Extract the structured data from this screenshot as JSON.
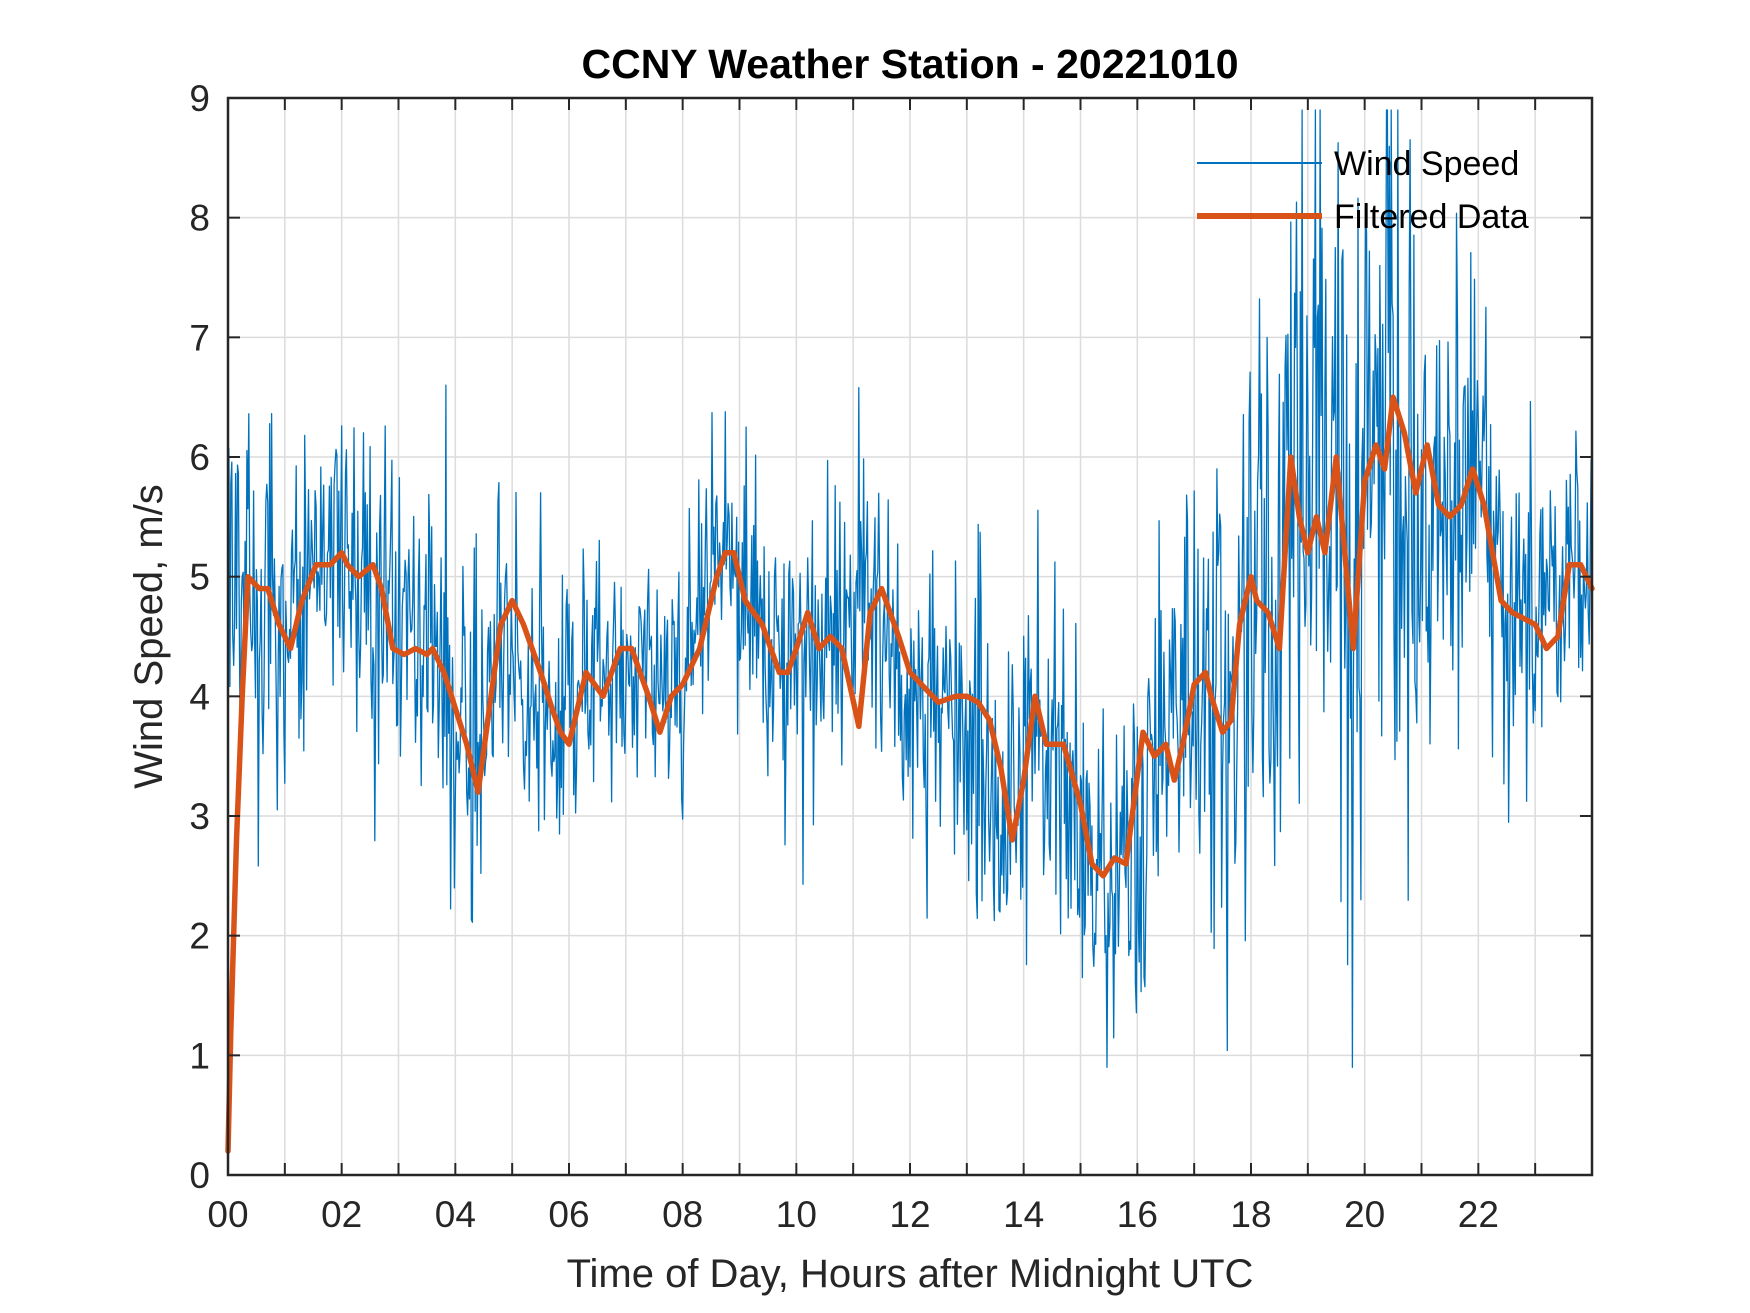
{
  "chart_data": {
    "type": "line",
    "title": "CCNY Weather Station - 20221010",
    "xlabel": "Time of Day, Hours after Midnight UTC",
    "ylabel": "Wind Speed, m/s",
    "xlim": [
      0,
      24
    ],
    "ylim": [
      0,
      9
    ],
    "xticks": [
      0,
      2,
      4,
      6,
      8,
      10,
      12,
      14,
      16,
      18,
      20,
      22
    ],
    "xtick_labels": [
      "00",
      "02",
      "04",
      "06",
      "08",
      "10",
      "12",
      "14",
      "16",
      "18",
      "20",
      "22"
    ],
    "yticks": [
      0,
      1,
      2,
      3,
      4,
      5,
      6,
      7,
      8,
      9
    ],
    "ytick_labels": [
      "0",
      "1",
      "2",
      "3",
      "4",
      "5",
      "6",
      "7",
      "8",
      "9"
    ],
    "grid": true,
    "legend_position": "top-right",
    "series": [
      {
        "name": "Wind Speed",
        "color": "#0072BD",
        "style": "thin",
        "noise_seed": 20221010,
        "amplitude": [
          [
            0,
            0.9
          ],
          [
            4,
            0.9
          ],
          [
            5.5,
            0.8
          ],
          [
            8,
            0.6
          ],
          [
            10,
            0.65
          ],
          [
            13,
            0.75
          ],
          [
            15,
            0.8
          ],
          [
            16,
            1.0
          ],
          [
            17.5,
            1.3
          ],
          [
            18.5,
            1.7
          ],
          [
            19.5,
            1.9
          ],
          [
            20.5,
            1.6
          ],
          [
            21.5,
            1.2
          ],
          [
            22.5,
            0.8
          ],
          [
            24,
            0.6
          ]
        ],
        "x": [
          0,
          0.2,
          0.5,
          1,
          1.5,
          2,
          2.5,
          3,
          3.5,
          4,
          4.4,
          4.9,
          5.5,
          5.8,
          6.3,
          7.3,
          7.6,
          8,
          8.7,
          9.5,
          10,
          10.5,
          11.2,
          12,
          12.5,
          13.2,
          13.7,
          14.2,
          14.5,
          15.3,
          15.7,
          16.4,
          17,
          17.5,
          18,
          18.4,
          18.7,
          19.3,
          19.8,
          20,
          20.5,
          21,
          21.6,
          22,
          22.5,
          23,
          23.5,
          24
        ],
        "values": [
          5.4,
          4.9,
          4.9,
          4.4,
          5.1,
          5.2,
          4.9,
          4.4,
          4.4,
          3.9,
          3.2,
          4.8,
          3.9,
          3.6,
          4.2,
          4.3,
          4.0,
          4.1,
          5.2,
          4.4,
          4.6,
          4.3,
          4.9,
          4.0,
          4.0,
          3.7,
          2.8,
          4.0,
          3.6,
          2.5,
          2.6,
          3.6,
          4.1,
          3.7,
          5.0,
          4.8,
          5.9,
          5.8,
          4.4,
          5.8,
          6.3,
          5.8,
          5.5,
          5.9,
          4.7,
          4.6,
          5.1,
          4.9
        ]
      },
      {
        "name": "Filtered Data",
        "color": "#D95319",
        "style": "thick",
        "x": [
          0,
          0.05,
          0.15,
          0.25,
          0.35,
          0.55,
          0.7,
          0.9,
          1.1,
          1.3,
          1.55,
          1.8,
          2.0,
          2.1,
          2.3,
          2.55,
          2.7,
          2.9,
          3.1,
          3.3,
          3.5,
          3.6,
          3.8,
          4.0,
          4.2,
          4.4,
          4.6,
          4.8,
          5.0,
          5.2,
          5.5,
          5.7,
          5.85,
          6.0,
          6.3,
          6.6,
          6.9,
          7.1,
          7.4,
          7.6,
          7.8,
          8.0,
          8.3,
          8.6,
          8.75,
          8.9,
          9.1,
          9.4,
          9.7,
          9.85,
          10.0,
          10.2,
          10.4,
          10.6,
          10.8,
          11.1,
          11.3,
          11.5,
          11.8,
          12.0,
          12.2,
          12.5,
          12.8,
          13.0,
          13.2,
          13.4,
          13.6,
          13.8,
          14.0,
          14.2,
          14.4,
          14.7,
          15.0,
          15.2,
          15.4,
          15.6,
          15.8,
          16.1,
          16.3,
          16.5,
          16.65,
          16.8,
          17.0,
          17.2,
          17.3,
          17.5,
          17.65,
          17.8,
          18.0,
          18.1,
          18.3,
          18.5,
          18.7,
          18.85,
          19.0,
          19.15,
          19.3,
          19.5,
          19.65,
          19.8,
          20.0,
          20.2,
          20.35,
          20.5,
          20.7,
          20.9,
          21.1,
          21.3,
          21.5,
          21.7,
          21.9,
          22.1,
          22.4,
          22.6,
          22.8,
          23.0,
          23.2,
          23.4,
          23.6,
          23.8,
          24.0
        ],
        "values": [
          0.2,
          1.2,
          2.8,
          4.0,
          5.0,
          4.9,
          4.9,
          4.6,
          4.4,
          4.8,
          5.1,
          5.1,
          5.2,
          5.1,
          5.0,
          5.1,
          4.9,
          4.4,
          4.35,
          4.4,
          4.35,
          4.4,
          4.2,
          3.9,
          3.6,
          3.2,
          3.9,
          4.6,
          4.8,
          4.6,
          4.2,
          3.9,
          3.7,
          3.6,
          4.2,
          4.0,
          4.4,
          4.4,
          4.0,
          3.7,
          4.0,
          4.1,
          4.4,
          5.0,
          5.2,
          5.2,
          4.8,
          4.6,
          4.2,
          4.2,
          4.4,
          4.7,
          4.4,
          4.5,
          4.4,
          3.75,
          4.7,
          4.9,
          4.5,
          4.2,
          4.1,
          3.95,
          4.0,
          4.0,
          3.95,
          3.8,
          3.4,
          2.8,
          3.3,
          4.0,
          3.6,
          3.6,
          3.1,
          2.6,
          2.5,
          2.65,
          2.6,
          3.7,
          3.5,
          3.6,
          3.3,
          3.6,
          4.1,
          4.2,
          4.0,
          3.7,
          3.8,
          4.6,
          5.0,
          4.8,
          4.7,
          4.4,
          6.0,
          5.5,
          5.2,
          5.5,
          5.2,
          6.0,
          5.2,
          4.4,
          5.8,
          6.1,
          5.9,
          6.5,
          6.2,
          5.7,
          6.1,
          5.6,
          5.5,
          5.6,
          5.9,
          5.6,
          4.8,
          4.7,
          4.65,
          4.6,
          4.4,
          4.5,
          5.1,
          5.1,
          4.9
        ]
      }
    ]
  }
}
